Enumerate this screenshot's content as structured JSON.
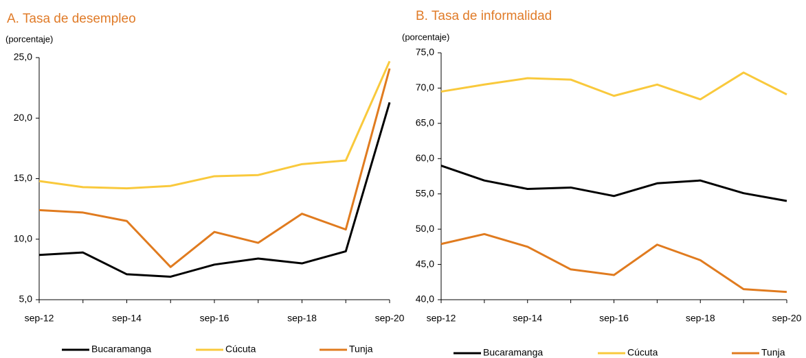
{
  "chart_data": [
    {
      "type": "line",
      "title": "A. Tasa de desempleo",
      "y_label": "(porcentaje)",
      "categories": [
        "sep-12",
        null,
        "sep-14",
        null,
        "sep-16",
        null,
        "sep-18",
        null,
        "sep-20"
      ],
      "ylim": [
        5,
        25
      ],
      "yticks": [
        {
          "value": 5,
          "label": "5,0"
        },
        {
          "value": 10,
          "label": "10,0"
        },
        {
          "value": 15,
          "label": "15,0"
        },
        {
          "value": 20,
          "label": "20,0"
        },
        {
          "value": 25,
          "label": "25,0"
        }
      ],
      "series": [
        {
          "name": "Bucaramanga",
          "color": "#000000",
          "values": [
            8.7,
            8.9,
            7.1,
            6.9,
            7.9,
            8.4,
            8.0,
            9.0,
            21.3
          ]
        },
        {
          "name": "Cúcuta",
          "color": "#f9c93c",
          "values": [
            14.8,
            14.3,
            14.2,
            14.4,
            15.2,
            15.3,
            16.2,
            16.5,
            24.7
          ]
        },
        {
          "name": "Tunja",
          "color": "#e07b1f",
          "values": [
            12.4,
            12.2,
            11.5,
            7.7,
            10.6,
            9.7,
            12.1,
            10.8,
            24.1
          ]
        }
      ]
    },
    {
      "type": "line",
      "title": "B. Tasa de informalidad",
      "y_label": "(porcentaje)",
      "categories": [
        "sep-12",
        null,
        "sep-14",
        null,
        "sep-16",
        null,
        "sep-18",
        null,
        "sep-20"
      ],
      "ylim": [
        40,
        75
      ],
      "yticks": [
        {
          "value": 40,
          "label": "40,0"
        },
        {
          "value": 45,
          "label": "45,0"
        },
        {
          "value": 50,
          "label": "50,0"
        },
        {
          "value": 55,
          "label": "55,0"
        },
        {
          "value": 60,
          "label": "60,0"
        },
        {
          "value": 65,
          "label": "65,0"
        },
        {
          "value": 70,
          "label": "70,0"
        },
        {
          "value": 75,
          "label": "75,0"
        }
      ],
      "series": [
        {
          "name": "Bucaramanga",
          "color": "#000000",
          "values": [
            59.0,
            56.9,
            55.7,
            55.9,
            54.7,
            56.5,
            56.9,
            55.1,
            54.0
          ]
        },
        {
          "name": "Cúcuta",
          "color": "#f9c93c",
          "values": [
            69.5,
            70.5,
            71.4,
            71.2,
            68.9,
            70.5,
            68.4,
            72.2,
            69.1
          ]
        },
        {
          "name": "Tunja",
          "color": "#e07b1f",
          "values": [
            47.9,
            49.3,
            47.5,
            44.3,
            43.5,
            47.8,
            45.6,
            41.5,
            41.1
          ]
        }
      ]
    }
  ]
}
